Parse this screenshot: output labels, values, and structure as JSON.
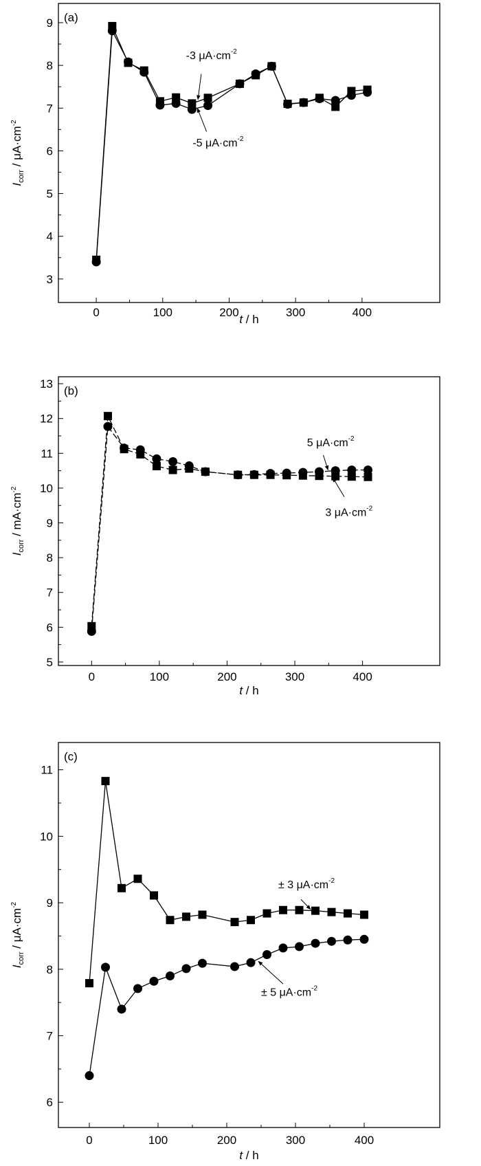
{
  "chart_data": [
    {
      "type": "line",
      "panel_label": "(a)",
      "xlabel": {
        "italic": "t",
        "rest": " / h"
      },
      "ylabel": {
        "italic": "I",
        "sub": "corr",
        "rest": " / μA·cm",
        "sup": "-2"
      },
      "xlim": [
        -57,
        517
      ],
      "ylim": [
        2.45,
        9.45
      ],
      "xticks": [
        0,
        100,
        200,
        300,
        400
      ],
      "yticks": [
        3,
        4,
        5,
        6,
        7,
        8,
        9
      ],
      "line_style": "solid",
      "x": [
        0,
        24,
        48,
        72,
        96,
        120,
        144,
        168,
        216,
        240,
        264,
        288,
        312,
        336,
        360,
        384,
        408
      ],
      "series": [
        {
          "name": "-3 μA·cm-2",
          "marker": "square",
          "values": [
            3.45,
            8.92,
            8.06,
            7.88,
            7.16,
            7.25,
            7.11,
            7.24,
            7.57,
            7.77,
            7.98,
            7.1,
            7.13,
            7.24,
            7.03,
            7.4,
            7.43
          ]
        },
        {
          "name": "-5 μA·cm-2",
          "marker": "circle",
          "values": [
            3.4,
            8.81,
            8.08,
            7.84,
            7.07,
            7.11,
            6.97,
            7.06,
            7.57,
            7.8,
            7.98,
            7.09,
            7.13,
            7.22,
            7.18,
            7.3,
            7.37
          ]
        }
      ],
      "annotations": [
        {
          "main": "-3 μA·cm",
          "sup": "-2",
          "text_at": [
            135,
            8.15
          ],
          "arrow_from": [
            158,
            7.8
          ],
          "arrow_to": [
            153,
            7.2
          ]
        },
        {
          "main": "-5 μA·cm",
          "sup": "-2",
          "text_at": [
            145,
            6.1
          ],
          "arrow_from": [
            166,
            6.45
          ],
          "arrow_to": [
            152,
            7.0
          ]
        }
      ]
    },
    {
      "type": "line",
      "panel_label": "(b)",
      "xlabel": {
        "italic": "t",
        "rest": " / h"
      },
      "ylabel": {
        "italic": "I",
        "sub": "corr",
        "rest": " / mA·cm",
        "sup": "-2"
      },
      "xlim": [
        -49,
        514
      ],
      "ylim": [
        4.9,
        13.2
      ],
      "xticks": [
        0,
        100,
        200,
        300,
        400
      ],
      "yticks": [
        5,
        6,
        7,
        8,
        9,
        10,
        11,
        12,
        13
      ],
      "line_style": "dashed",
      "x": [
        0,
        24,
        48,
        72,
        96,
        120,
        144,
        168,
        216,
        240,
        264,
        288,
        312,
        336,
        360,
        384,
        408
      ],
      "series": [
        {
          "name": "3 μA·cm-2",
          "marker": "square",
          "values": [
            6.03,
            12.07,
            11.12,
            10.97,
            10.63,
            10.52,
            10.56,
            10.47,
            10.38,
            10.38,
            10.38,
            10.37,
            10.36,
            10.35,
            10.34,
            10.33,
            10.32
          ]
        },
        {
          "name": "5 μA·cm-2",
          "marker": "circle",
          "values": [
            5.88,
            11.77,
            11.15,
            11.1,
            10.84,
            10.76,
            10.64,
            10.47,
            10.38,
            10.39,
            10.42,
            10.43,
            10.45,
            10.47,
            10.5,
            10.52,
            10.52
          ]
        }
      ],
      "annotations": [
        {
          "main": "5 μA·cm",
          "sup": "-2",
          "text_at": [
            318,
            11.2
          ],
          "arrow_from": [
            342,
            10.95
          ],
          "arrow_to": [
            349,
            10.52
          ]
        },
        {
          "main": "3 μA·cm",
          "sup": "-2",
          "text_at": [
            345,
            9.2
          ],
          "arrow_from": [
            373,
            9.75
          ],
          "arrow_to": [
            356,
            10.3
          ]
        }
      ]
    },
    {
      "type": "line",
      "panel_label": "(c)",
      "xlabel": {
        "italic": "t",
        "rest": " / h"
      },
      "ylabel": {
        "italic": "I",
        "sub": "corr",
        "rest": " / μA·cm",
        "sup": "-2"
      },
      "xlim": [
        -45,
        510
      ],
      "ylim": [
        5.62,
        11.41
      ],
      "xticks": [
        0,
        100,
        200,
        300,
        400
      ],
      "yticks": [
        6,
        7,
        8,
        9,
        10,
        11
      ],
      "line_style": "solid",
      "x": [
        0,
        23.5,
        47,
        70.5,
        94,
        117.5,
        141,
        164.5,
        211.5,
        235,
        258.5,
        282,
        305.5,
        329,
        352.5,
        376,
        400
      ],
      "series": [
        {
          "name": "± 3 μA·cm-2",
          "marker": "square",
          "values": [
            7.79,
            10.83,
            9.22,
            9.36,
            9.11,
            8.74,
            8.79,
            8.82,
            8.71,
            8.74,
            8.84,
            8.89,
            8.89,
            8.88,
            8.86,
            8.84,
            8.82
          ]
        },
        {
          "name": "± 5 μA·cm-2",
          "marker": "circle",
          "values": [
            6.4,
            8.03,
            7.4,
            7.71,
            7.82,
            7.9,
            8.01,
            8.09,
            8.04,
            8.1,
            8.22,
            8.32,
            8.34,
            8.39,
            8.42,
            8.44,
            8.45
          ]
        }
      ],
      "annotations": [
        {
          "main": "± 3 μA·cm",
          "sup": "-2",
          "text_at": [
            275,
            9.22
          ],
          "arrow_from": [
            308,
            9.05
          ],
          "arrow_to": [
            322,
            8.9
          ]
        },
        {
          "main": "± 5 μA·cm",
          "sup": "-2",
          "text_at": [
            250,
            7.6
          ],
          "arrow_from": [
            282,
            7.78
          ],
          "arrow_to": [
            246,
            8.12
          ]
        }
      ]
    }
  ]
}
